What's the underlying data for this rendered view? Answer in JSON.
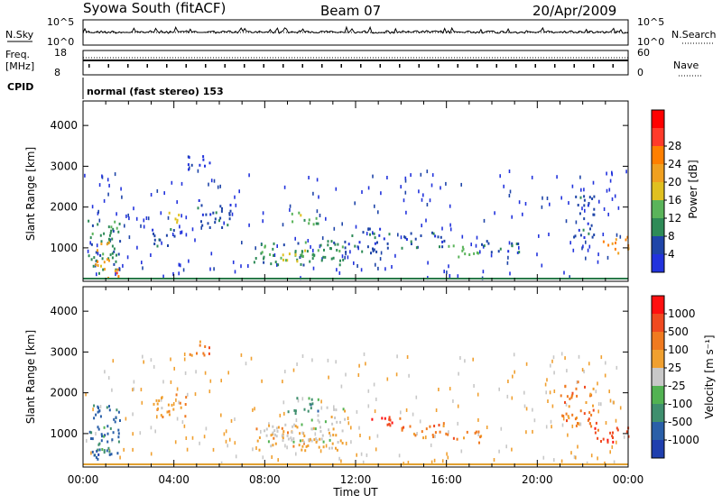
{
  "header": {
    "station": "Syowa South (fitACF)",
    "beam": "Beam 07",
    "date": "20/Apr/2009"
  },
  "colors": {
    "power_scale": [
      "#2233dd",
      "#1f45a8",
      "#2e8b57",
      "#5ab45a",
      "#e0c020",
      "#f0a020",
      "#ff7f00",
      "#ff3a2a",
      "#ff0000"
    ],
    "velocity_scale": [
      "#1f3fae",
      "#2a5fa8",
      "#3f8f6e",
      "#52b252",
      "#c8c8c8",
      "#f0a030",
      "#f07a20",
      "#f04a20",
      "#ff1010"
    ]
  },
  "top_panels": {
    "nsky_label": "N.Sky",
    "nsky_ticks": [
      "10^5",
      "10^0"
    ],
    "nsearch_label": "N.Search",
    "nsearch_ticks": [
      "10^5",
      "10^0"
    ],
    "freq_label_1": "Freq.",
    "freq_label_2": "[MHz]",
    "freq_ticks": [
      "18",
      "8"
    ],
    "nave_label": "Nave",
    "nave_ticks": [
      "60",
      "0"
    ],
    "cpid_label": "CPID",
    "cpid_text": "normal (fast stereo) 153"
  },
  "chart_data": [
    {
      "type": "heatmap",
      "name": "power",
      "ylabel": "Slant Range [km]",
      "ylim": [
        180,
        4600
      ],
      "yticks": [
        "1000",
        "2000",
        "3000",
        "4000"
      ],
      "colorbar_label": "Power [dB]",
      "colorbar_ticks": [
        "4",
        "8",
        "12",
        "16",
        "20",
        "24",
        "28"
      ],
      "xlim_hours": [
        0,
        24
      ],
      "regions": [
        {
          "t": [
            0.2,
            1.6
          ],
          "r": [
            400,
            1800
          ],
          "level": 2
        },
        {
          "t": [
            0.5,
            1.2
          ],
          "r": [
            500,
            1200
          ],
          "level": 5
        },
        {
          "t": [
            1.0,
            1.6
          ],
          "r": [
            200,
            500
          ],
          "level": 6
        },
        {
          "t": [
            3.0,
            4.0
          ],
          "r": [
            1000,
            1500
          ],
          "level": 1
        },
        {
          "t": [
            3.6,
            4.2
          ],
          "r": [
            1600,
            1900
          ],
          "level": 4
        },
        {
          "t": [
            4.6,
            5.6
          ],
          "r": [
            2900,
            3300
          ],
          "level": 0
        },
        {
          "t": [
            5.0,
            6.5
          ],
          "r": [
            1500,
            2200
          ],
          "level": 1
        },
        {
          "t": [
            7.5,
            11.5
          ],
          "r": [
            600,
            1200
          ],
          "level": 2
        },
        {
          "t": [
            8.5,
            10.0
          ],
          "r": [
            700,
            1000
          ],
          "level": 4
        },
        {
          "t": [
            9.0,
            10.5
          ],
          "r": [
            1600,
            1900
          ],
          "level": 3
        },
        {
          "t": [
            11.5,
            13.5
          ],
          "r": [
            900,
            1500
          ],
          "level": 1
        },
        {
          "t": [
            14.0,
            16.0
          ],
          "r": [
            1000,
            1400
          ],
          "level": 1
        },
        {
          "t": [
            16.0,
            17.5
          ],
          "r": [
            800,
            1100
          ],
          "level": 3
        },
        {
          "t": [
            17.5,
            19.5
          ],
          "r": [
            900,
            1200
          ],
          "level": 1
        },
        {
          "t": [
            21.5,
            22.5
          ],
          "r": [
            1200,
            2300
          ],
          "level": 1
        },
        {
          "t": [
            22.8,
            24.0
          ],
          "r": [
            900,
            1300
          ],
          "level": 6
        }
      ]
    },
    {
      "type": "heatmap",
      "name": "velocity",
      "ylabel": "Slant Range [km]",
      "ylim": [
        180,
        4600
      ],
      "yticks": [
        "1000",
        "2000",
        "3000",
        "4000"
      ],
      "xlabel": "Time UT",
      "xticks": [
        "00:00",
        "04:00",
        "08:00",
        "12:00",
        "16:00",
        "20:00",
        "00:00"
      ],
      "colorbar_label": "Velocity [m s⁻¹]",
      "colorbar_ticks": [
        "1000",
        "500",
        "100",
        "25",
        "-25",
        "-100",
        "-500",
        "-1000"
      ],
      "xlim_hours": [
        0,
        24
      ],
      "regions": [
        {
          "t": [
            0.2,
            1.6
          ],
          "r": [
            400,
            1800
          ],
          "level": 1
        },
        {
          "t": [
            0.5,
            1.2
          ],
          "r": [
            500,
            1200
          ],
          "level": 2
        },
        {
          "t": [
            3.0,
            4.5
          ],
          "r": [
            1400,
            2000
          ],
          "level": 5
        },
        {
          "t": [
            4.6,
            5.6
          ],
          "r": [
            2900,
            3300
          ],
          "level": 6
        },
        {
          "t": [
            7.5,
            11.5
          ],
          "r": [
            600,
            1200
          ],
          "level": 5
        },
        {
          "t": [
            8.0,
            11.0
          ],
          "r": [
            800,
            1300
          ],
          "level": 4
        },
        {
          "t": [
            9.0,
            10.5
          ],
          "r": [
            1500,
            1900
          ],
          "level": 2
        },
        {
          "t": [
            10.0,
            11.5
          ],
          "r": [
            1300,
            1700
          ],
          "level": 4
        },
        {
          "t": [
            12.5,
            14.0
          ],
          "r": [
            1200,
            1500
          ],
          "level": 7
        },
        {
          "t": [
            14.0,
            16.0
          ],
          "r": [
            900,
            1300
          ],
          "level": 6
        },
        {
          "t": [
            16.0,
            17.5
          ],
          "r": [
            800,
            1100
          ],
          "level": 6
        },
        {
          "t": [
            21.0,
            22.5
          ],
          "r": [
            1200,
            2300
          ],
          "level": 6
        },
        {
          "t": [
            22.5,
            24.0
          ],
          "r": [
            800,
            1300
          ],
          "level": 7
        }
      ]
    }
  ]
}
